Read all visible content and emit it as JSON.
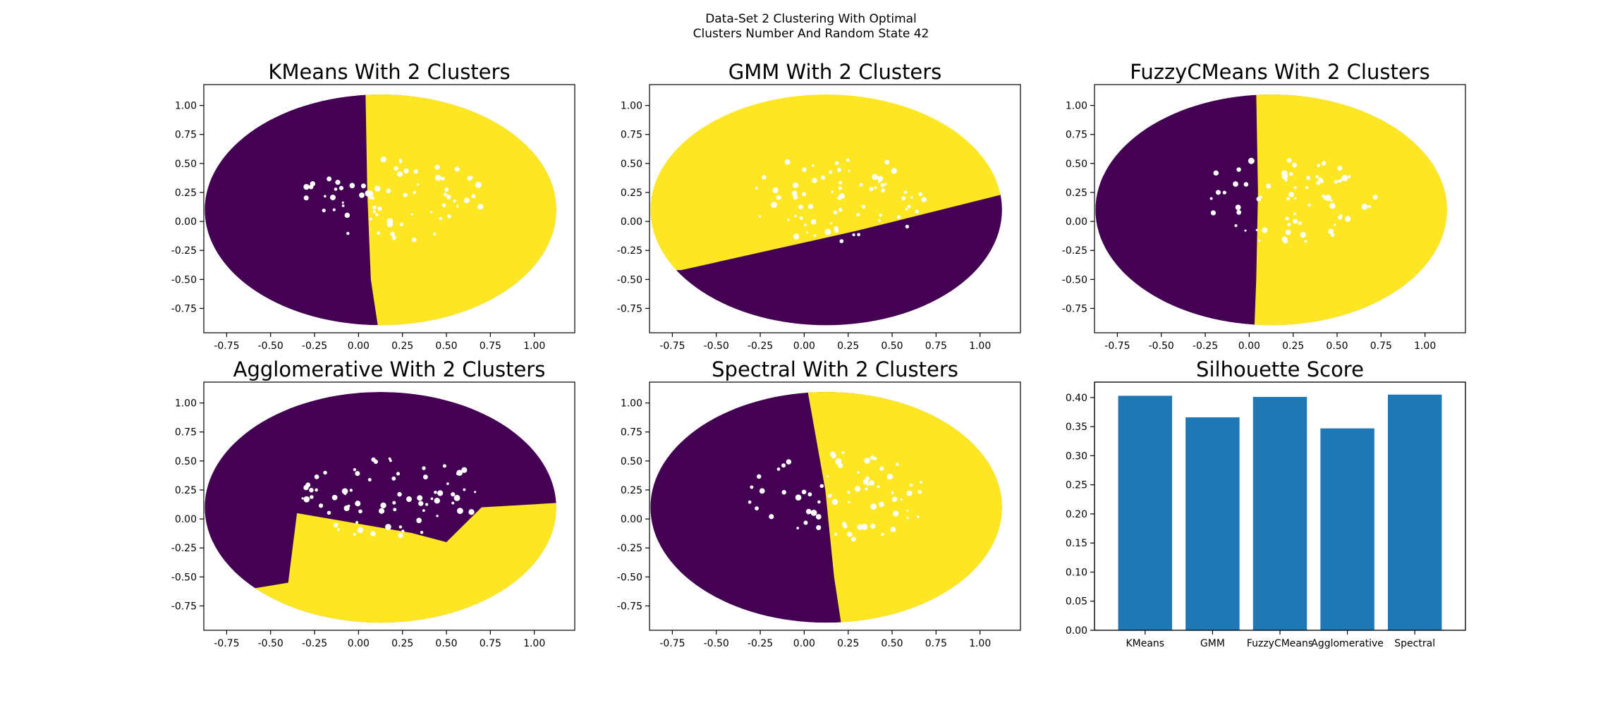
{
  "figure": {
    "suptitle_line1": "Data-Set 2 Clustering With Optimal",
    "suptitle_line2": "Clusters Number And Random State 42"
  },
  "colors": {
    "cluster_0": "#440154",
    "cluster_1": "#fde725",
    "bar": "#1f77b4"
  },
  "chart_data": [
    {
      "type": "scatter",
      "title": "KMeans With 2 Clusters",
      "xlabel": "",
      "ylabel": "",
      "xlim": [
        -0.88,
        1.23
      ],
      "ylim": [
        -0.96,
        1.18
      ],
      "xticks": [
        "-0.75",
        "-0.50",
        "-0.25",
        "0.00",
        "0.25",
        "0.50",
        "0.75",
        "1.00"
      ],
      "yticks": [
        "-0.75",
        "-0.50",
        "-0.25",
        "0.00",
        "0.25",
        "0.50",
        "0.75",
        "1.00"
      ],
      "data_region": {
        "shape": "ellipse",
        "center": [
          0.125,
          0.1
        ],
        "radius": [
          1.0,
          0.995
        ]
      },
      "clusters": [
        {
          "label": 0,
          "region": "left of boundary x ≈ 0.05 (top) to 0.1 (bottom)"
        },
        {
          "label": 1,
          "region": "right of boundary"
        }
      ],
      "boundary": [
        [
          0.04,
          1.1
        ],
        [
          0.05,
          0.25
        ],
        [
          0.07,
          -0.5
        ],
        [
          0.11,
          -0.9
        ]
      ]
    },
    {
      "type": "scatter",
      "title": "GMM With 2 Clusters",
      "xlabel": "",
      "ylabel": "",
      "xlim": [
        -0.88,
        1.23
      ],
      "ylim": [
        -0.96,
        1.18
      ],
      "xticks": [
        "-0.75",
        "-0.50",
        "-0.25",
        "0.00",
        "0.25",
        "0.50",
        "0.75",
        "1.00"
      ],
      "yticks": [
        "-0.75",
        "-0.50",
        "-0.25",
        "0.00",
        "0.25",
        "0.50",
        "0.75",
        "1.00"
      ],
      "data_region": {
        "shape": "ellipse",
        "center": [
          0.125,
          0.1
        ],
        "radius": [
          1.0,
          0.995
        ]
      },
      "clusters": [
        {
          "label": 1,
          "region": "above diagonal line"
        },
        {
          "label": 0,
          "region": "below diagonal line"
        }
      ],
      "boundary": [
        [
          -0.7,
          -0.42
        ],
        [
          0.3,
          -0.08
        ],
        [
          1.12,
          0.23
        ]
      ]
    },
    {
      "type": "scatter",
      "title": "FuzzyCMeans With 2 Clusters",
      "xlabel": "",
      "ylabel": "",
      "xlim": [
        -0.88,
        1.23
      ],
      "ylim": [
        -0.96,
        1.18
      ],
      "xticks": [
        "-0.75",
        "-0.50",
        "-0.25",
        "0.00",
        "0.25",
        "0.50",
        "0.75",
        "1.00"
      ],
      "yticks": [
        "-0.75",
        "-0.50",
        "-0.25",
        "0.00",
        "0.25",
        "0.50",
        "0.75",
        "1.00"
      ],
      "data_region": {
        "shape": "ellipse",
        "center": [
          0.125,
          0.1
        ],
        "radius": [
          1.0,
          0.995
        ]
      },
      "clusters": [
        {
          "label": 0,
          "region": "left of boundary x ≈ 0.04"
        },
        {
          "label": 1,
          "region": "right of boundary"
        }
      ],
      "boundary": [
        [
          0.04,
          1.1
        ],
        [
          0.05,
          0.25
        ],
        [
          0.04,
          -0.5
        ],
        [
          0.03,
          -0.9
        ]
      ]
    },
    {
      "type": "scatter",
      "title": "Agglomerative With 2 Clusters",
      "xlabel": "",
      "ylabel": "",
      "xlim": [
        -0.88,
        1.23
      ],
      "ylim": [
        -0.96,
        1.18
      ],
      "xticks": [
        "-0.75",
        "-0.50",
        "-0.25",
        "0.00",
        "0.25",
        "0.50",
        "0.75",
        "1.00"
      ],
      "yticks": [
        "-0.75",
        "-0.50",
        "-0.25",
        "0.00",
        "0.25",
        "0.50",
        "0.75",
        "1.00"
      ],
      "data_region": {
        "shape": "ellipse",
        "center": [
          0.125,
          0.1
        ],
        "radius": [
          1.0,
          0.995
        ]
      },
      "clusters": [
        {
          "label": 0,
          "region": "upper and left part"
        },
        {
          "label": 1,
          "region": "lower right part"
        }
      ],
      "boundary": [
        [
          -0.6,
          -0.6
        ],
        [
          -0.4,
          -0.55
        ],
        [
          -0.35,
          0.05
        ],
        [
          0.3,
          -0.12
        ],
        [
          0.5,
          -0.2
        ],
        [
          0.7,
          0.1
        ],
        [
          1.15,
          0.14
        ]
      ]
    },
    {
      "type": "scatter",
      "title": "Spectral With 2 Clusters",
      "xlabel": "",
      "ylabel": "",
      "xlim": [
        -0.88,
        1.23
      ],
      "ylim": [
        -0.96,
        1.18
      ],
      "xticks": [
        "-0.75",
        "-0.50",
        "-0.25",
        "0.00",
        "0.25",
        "0.50",
        "0.75",
        "1.00"
      ],
      "yticks": [
        "-0.75",
        "-0.50",
        "-0.25",
        "0.00",
        "0.25",
        "0.50",
        "0.75",
        "1.00"
      ],
      "data_region": {
        "shape": "ellipse",
        "center": [
          0.125,
          0.1
        ],
        "radius": [
          1.0,
          0.995
        ]
      },
      "clusters": [
        {
          "label": 0,
          "region": "left of slanted boundary"
        },
        {
          "label": 1,
          "region": "right of slanted boundary"
        }
      ],
      "boundary": [
        [
          0.02,
          1.1
        ],
        [
          0.12,
          0.25
        ],
        [
          0.17,
          -0.5
        ],
        [
          0.21,
          -0.9
        ]
      ]
    },
    {
      "type": "bar",
      "title": "Silhouette Score",
      "xlabel": "",
      "ylabel": "",
      "categories": [
        "KMeans",
        "GMM",
        "FuzzyCMeans",
        "Agglomerative",
        "Spectral"
      ],
      "values": [
        0.403,
        0.366,
        0.401,
        0.347,
        0.405
      ],
      "ylim": [
        0,
        0.4265
      ],
      "yticks": [
        "0.00",
        "0.05",
        "0.10",
        "0.15",
        "0.20",
        "0.25",
        "0.30",
        "0.35",
        "0.40"
      ]
    }
  ]
}
